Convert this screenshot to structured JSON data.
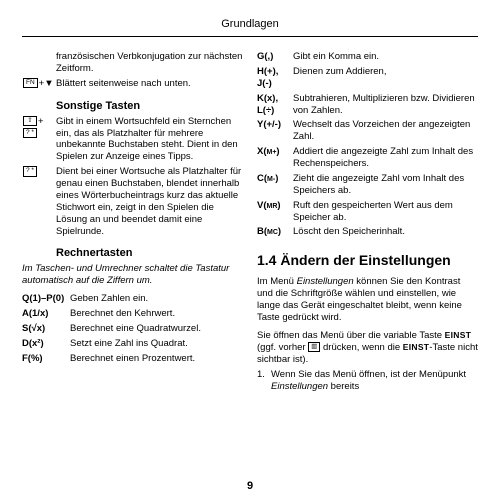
{
  "header": "Grundlagen",
  "page_number": "9",
  "left": {
    "intro_continuation": "französischen Verbkonjugation zur nächsten Zeitform.",
    "fn_down": {
      "key1": "FN",
      "plus": "+",
      "key2": "▼",
      "text": "Blättert seitenweise nach unten."
    },
    "sec_other": "Sonstige Tasten",
    "shift_qmark": {
      "key1": "⇧",
      "plus": "+",
      "key2": "? *",
      "text": "Gibt in einem Wortsuchfeld ein Sternchen ein, das als Platzhalter für mehrere unbekannte Buchstaben steht. Dient in den Spielen zur Anzeige eines Tipps."
    },
    "qmark": {
      "key": "? *",
      "text": "Dient bei einer Wortsuche als Platzhalter für genau einen Buchstaben, blendet innerhalb eines Wörterbucheintrags kurz das aktuelle Stichwort ein, zeigt in den Spielen die Lösung an und beendet damit eine Spielrunde."
    },
    "sec_calc": "Rechnertasten",
    "calc_note": "Im Taschen- und Umrechner schaltet die Tastatur automatisch auf die Ziffern um.",
    "calc": [
      {
        "k": "Q(1)–P(0)",
        "t": "Geben Zahlen ein."
      },
      {
        "k": "A(1/x)",
        "t": "Berechnet den Kehrwert."
      },
      {
        "k": "S(√x)",
        "t": "Berechnet eine Quadratwurzel."
      },
      {
        "k": "D(x²)",
        "t": "Setzt eine Zahl ins Quadrat."
      },
      {
        "k": "F(%)",
        "t": "Berechnet einen Prozentwert."
      }
    ]
  },
  "right": {
    "calc2": [
      {
        "k": "G(,)",
        "t": "Gibt ein Komma ein."
      },
      {
        "k": "H(+), J(-)",
        "t": "Dienen zum Addieren,"
      },
      {
        "k": "K(x), L(÷)",
        "t": "Subtrahieren, Multiplizieren bzw. Dividieren von Zahlen."
      },
      {
        "k": "Y(+/-)",
        "t": "Wechselt das Vorzeichen der angezeigten Zahl."
      },
      {
        "k": "X(M+)",
        "t": "Addiert die angezeigte Zahl zum Inhalt des Rechenspeichers."
      },
      {
        "k": "C(M-)",
        "t": "Zieht die angezeigte Zahl vom Inhalt des Speichers ab."
      },
      {
        "k": "V(MR)",
        "t": "Ruft den gespeicherten Wert aus dem Speicher ab."
      },
      {
        "k": "B(MC)",
        "t": "Löscht den Speicherinhalt."
      }
    ],
    "heading": "1.4 Ändern der Einstellungen",
    "para1_a": "Im Menü ",
    "para1_i": "Einstellungen",
    "para1_b": " können Sie den Kontrast und die Schriftgröße wählen und einstellen, wie lange das Gerät eingeschaltet bleibt, wenn keine Taste gedrückt wird.",
    "para2_a": "Sie öffnen das Menü über die variable Taste ",
    "para2_key1": "EINST",
    "para2_b": " (ggf. vorher ",
    "para2_icon": "▥",
    "para2_c": " drücken, wenn die ",
    "para2_key2": "EINST",
    "para2_d": "-Taste nicht sichtbar ist).",
    "step1_a": "Wenn Sie das Menü öffnen, ist der Menüpunkt ",
    "step1_i": "Einstellungen",
    "step1_b": " bereits"
  }
}
